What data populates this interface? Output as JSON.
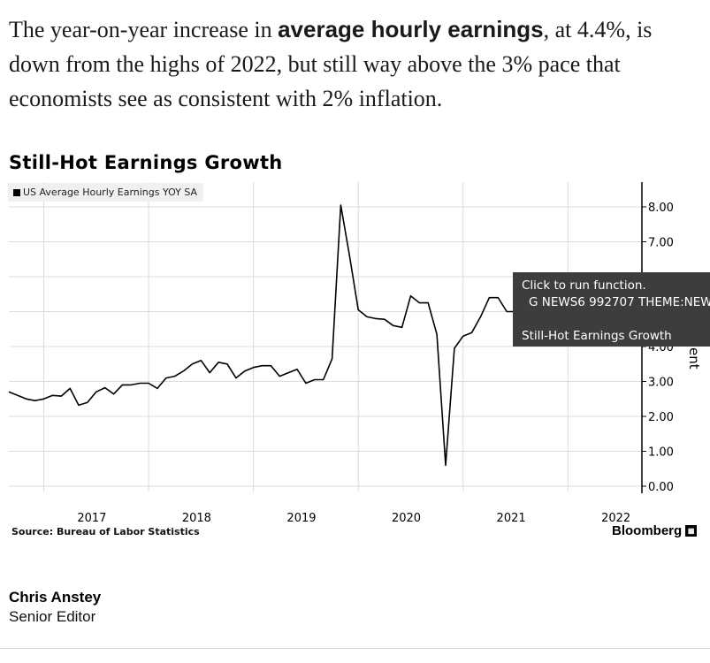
{
  "intro": {
    "before": "The year-on-year increase in ",
    "bold": "average hourly earnings",
    "after": ", at 4.4%, is down from the highs of 2022, but still way above the 3% pace that economists see as consistent with 2% inflation."
  },
  "tooltip": {
    "line1": "Click to run function.",
    "line2": "G NEWS6 992707 THEME:NEW",
    "line3": "Still-Hot Earnings Growth"
  },
  "axis_side_label": "ent",
  "footer": {
    "source": "Source: Bureau of Labor Statistics",
    "brand": "Bloomberg"
  },
  "author": {
    "name": "Chris Anstey",
    "role": "Senior Editor"
  },
  "colors": {
    "line": "#000000",
    "tooltip_bg": "#3d3d3d",
    "legend_bg": "#f0f0f0"
  },
  "chart_data": {
    "type": "line",
    "title": "Still-Hot Earnings Growth",
    "xlabel": "",
    "ylabel": "",
    "x_tick_labels": [
      "2017",
      "2018",
      "2019",
      "2020",
      "2021",
      "2022"
    ],
    "y_tick_labels": [
      "0.00",
      "1.00",
      "2.00",
      "3.00",
      "4.00",
      "7.00",
      "8.00"
    ],
    "ylim": [
      0,
      8.5
    ],
    "grid": true,
    "legend_position": "top-left",
    "series": [
      {
        "name": "US Average Hourly Earnings YOY SA",
        "x": [
          "2016-09",
          "2016-10",
          "2016-11",
          "2016-12",
          "2017-01",
          "2017-02",
          "2017-03",
          "2017-04",
          "2017-05",
          "2017-06",
          "2017-07",
          "2017-08",
          "2017-09",
          "2017-10",
          "2017-11",
          "2017-12",
          "2018-01",
          "2018-02",
          "2018-03",
          "2018-04",
          "2018-05",
          "2018-06",
          "2018-07",
          "2018-08",
          "2018-09",
          "2018-10",
          "2018-11",
          "2018-12",
          "2019-01",
          "2019-02",
          "2019-03",
          "2019-04",
          "2019-05",
          "2019-06",
          "2019-07",
          "2019-08",
          "2019-09",
          "2019-10",
          "2019-11",
          "2019-12",
          "2020-01",
          "2020-02",
          "2020-03",
          "2020-04",
          "2020-05",
          "2020-06",
          "2020-07",
          "2020-08",
          "2020-09",
          "2020-10",
          "2020-11",
          "2020-12",
          "2021-01",
          "2021-02",
          "2021-03",
          "2021-04",
          "2021-05",
          "2021-06",
          "2021-07",
          "2021-08",
          "2021-09",
          "2021-10",
          "2021-11",
          "2021-12",
          "2022-01",
          "2022-02"
        ],
        "values": [
          2.7,
          2.6,
          2.5,
          2.45,
          2.5,
          2.6,
          2.58,
          2.8,
          2.32,
          2.4,
          2.7,
          2.82,
          2.64,
          2.9,
          2.9,
          2.95,
          2.95,
          2.8,
          3.1,
          3.15,
          3.3,
          3.5,
          3.6,
          3.25,
          3.55,
          3.5,
          3.1,
          3.3,
          3.4,
          3.45,
          3.45,
          3.15,
          3.25,
          3.35,
          2.95,
          3.05,
          3.05,
          3.65,
          8.05,
          6.6,
          5.05,
          4.85,
          4.8,
          4.78,
          4.6,
          4.55,
          5.45,
          5.25,
          5.25,
          4.35,
          0.6,
          3.95,
          4.3,
          4.4,
          4.85,
          5.4,
          5.4,
          5.0,
          5.0,
          5.0,
          5.0,
          5.0,
          5.0,
          5.0,
          5.0,
          5.0
        ]
      }
    ]
  }
}
